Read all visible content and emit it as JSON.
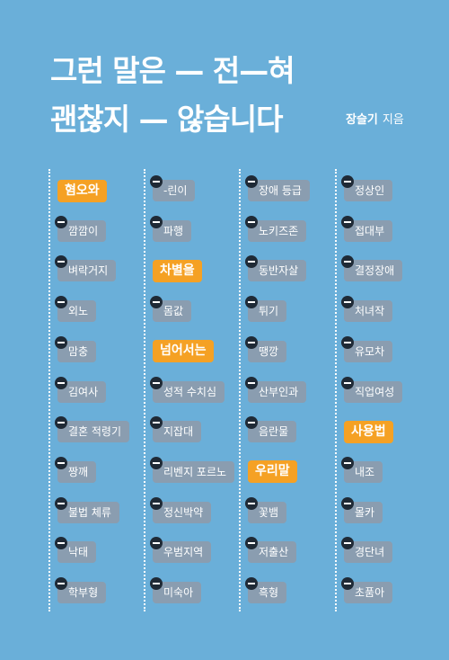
{
  "title": {
    "line1": "그런 말은 — 전—혀",
    "line2": "괜찮지 — 않습니다"
  },
  "author": {
    "name": "장슬기",
    "role": "지음"
  },
  "columns": [
    {
      "items": [
        {
          "text": "혐오와",
          "type": "category"
        },
        {
          "text": "깜깜이",
          "type": "word"
        },
        {
          "text": "벼락거지",
          "type": "word"
        },
        {
          "text": "외노",
          "type": "word"
        },
        {
          "text": "맘충",
          "type": "word"
        },
        {
          "text": "김여사",
          "type": "word"
        },
        {
          "text": "결혼 적령기",
          "type": "word"
        },
        {
          "text": "짱깨",
          "type": "word"
        },
        {
          "text": "불법 체류",
          "type": "word"
        },
        {
          "text": "낙태",
          "type": "word"
        },
        {
          "text": "학부형",
          "type": "word"
        }
      ]
    },
    {
      "items": [
        {
          "text": "-린이",
          "type": "word"
        },
        {
          "text": "파행",
          "type": "word"
        },
        {
          "text": "차별을",
          "type": "category"
        },
        {
          "text": "몸값",
          "type": "word"
        },
        {
          "text": "넘어서는",
          "type": "category"
        },
        {
          "text": "성적 수치심",
          "type": "word"
        },
        {
          "text": "지잡대",
          "type": "word"
        },
        {
          "text": "리벤지 포르노",
          "type": "word"
        },
        {
          "text": "정신박약",
          "type": "word"
        },
        {
          "text": "우범지역",
          "type": "word"
        },
        {
          "text": "미숙아",
          "type": "word"
        }
      ]
    },
    {
      "items": [
        {
          "text": "장애 등급",
          "type": "word"
        },
        {
          "text": "노키즈존",
          "type": "word"
        },
        {
          "text": "동반자살",
          "type": "word"
        },
        {
          "text": "튀기",
          "type": "word"
        },
        {
          "text": "땡깡",
          "type": "word"
        },
        {
          "text": "산부인과",
          "type": "word"
        },
        {
          "text": "음란물",
          "type": "word"
        },
        {
          "text": "우리말",
          "type": "category"
        },
        {
          "text": "꽃뱀",
          "type": "word"
        },
        {
          "text": "저출산",
          "type": "word"
        },
        {
          "text": "흑형",
          "type": "word"
        }
      ]
    },
    {
      "items": [
        {
          "text": "정상인",
          "type": "word"
        },
        {
          "text": "접대부",
          "type": "word"
        },
        {
          "text": "결정장애",
          "type": "word"
        },
        {
          "text": "처녀작",
          "type": "word"
        },
        {
          "text": "유모차",
          "type": "word"
        },
        {
          "text": "직업여성",
          "type": "word"
        },
        {
          "text": "사용법",
          "type": "category"
        },
        {
          "text": "내조",
          "type": "word"
        },
        {
          "text": "몰카",
          "type": "word"
        },
        {
          "text": "경단녀",
          "type": "word"
        },
        {
          "text": "초품아",
          "type": "word"
        }
      ]
    }
  ],
  "colors": {
    "background": "#6aafd9",
    "word_pill": "#8a9db0",
    "category_pill": "#f5a124",
    "minus_icon": "#1f2a36",
    "text": "#ffffff"
  },
  "icons": {
    "word_marker": "minus-circle-icon"
  }
}
